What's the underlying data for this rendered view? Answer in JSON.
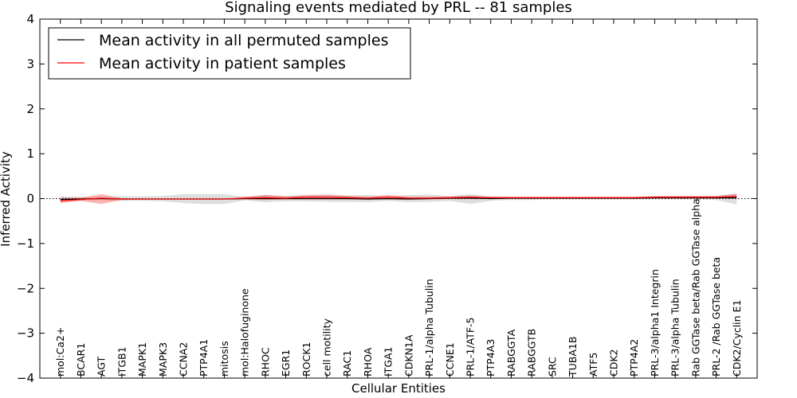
{
  "chart_data": {
    "type": "line",
    "title": "Signaling events mediated by PRL -- 81 samples",
    "xlabel": "Cellular Entities",
    "ylabel": "Inferred Activity",
    "ylim": [
      -4,
      4
    ],
    "yticks": [
      -4,
      -3,
      -2,
      -1,
      0,
      1,
      2,
      3,
      4
    ],
    "ytick_labels": [
      "−4",
      "−3",
      "−2",
      "−1",
      "0",
      "1",
      "2",
      "3",
      "4"
    ],
    "legend_position": "top-left",
    "categories": [
      "mol:Ca2+",
      "BCAR1",
      "AGT",
      "ITGB1",
      "MAPK1",
      "MAPK3",
      "CCNA2",
      "PTP4A1",
      "mitosis",
      "mol:Halofuginone",
      "RHOC",
      "EGR1",
      "ROCK1",
      "cell motility",
      "RAC1",
      "RHOA",
      "ITGA1",
      "CDKN1A",
      "PRL-1/alpha Tubulin",
      "CCNE1",
      "PRL-1/ATF-5",
      "PTP4A3",
      "RABGGTA",
      "RABGGTB",
      "SRC",
      "TUBA1B",
      "ATF5",
      "CDK2",
      "PTP4A2",
      "PRL-3/alpha1 Integrin",
      "PRL-3/alpha Tubulin",
      "Rab GGTase beta/Rab GGTase alpha",
      "PRL-2 /Rab GGTase beta",
      "CDK2/Cyclin E1"
    ],
    "series": [
      {
        "name": "Mean activity in all permuted samples",
        "color": "#000000",
        "values": [
          -0.02,
          -0.01,
          0.0,
          -0.01,
          -0.01,
          -0.01,
          -0.01,
          -0.01,
          -0.01,
          0.0,
          0.0,
          0.0,
          0.0,
          0.0,
          0.0,
          -0.01,
          0.0,
          -0.01,
          0.0,
          0.01,
          0.01,
          0.0,
          0.01,
          0.01,
          0.01,
          0.01,
          0.01,
          0.01,
          0.01,
          0.02,
          0.02,
          0.02,
          0.02,
          0.02
        ],
        "band_low": [
          -0.05,
          -0.04,
          -0.03,
          -0.05,
          -0.05,
          -0.06,
          -0.1,
          -0.12,
          -0.12,
          -0.04,
          -0.08,
          -0.06,
          -0.06,
          -0.07,
          -0.07,
          -0.08,
          -0.05,
          -0.08,
          -0.07,
          -0.05,
          -0.12,
          -0.05,
          -0.03,
          -0.03,
          -0.02,
          -0.02,
          -0.02,
          -0.02,
          -0.02,
          -0.02,
          -0.02,
          -0.02,
          -0.03,
          -0.13
        ],
        "band_high": [
          0.05,
          0.04,
          0.03,
          0.05,
          0.05,
          0.06,
          0.1,
          0.1,
          0.1,
          0.04,
          0.08,
          0.06,
          0.06,
          0.07,
          0.07,
          0.08,
          0.05,
          0.08,
          0.09,
          0.05,
          0.1,
          0.05,
          0.04,
          0.04,
          0.04,
          0.04,
          0.04,
          0.04,
          0.04,
          0.04,
          0.05,
          0.05,
          0.06,
          0.12
        ]
      },
      {
        "name": "Mean activity in patient samples",
        "color": "#ff0000",
        "values": [
          -0.05,
          -0.02,
          0.01,
          -0.01,
          -0.01,
          -0.01,
          -0.01,
          -0.01,
          -0.01,
          0.01,
          0.02,
          0.01,
          0.03,
          0.03,
          0.02,
          0.01,
          0.03,
          0.01,
          0.01,
          0.02,
          0.03,
          0.02,
          0.02,
          0.02,
          0.02,
          0.02,
          0.02,
          0.02,
          0.02,
          0.03,
          0.03,
          0.03,
          0.03,
          0.05
        ],
        "band_low": [
          -0.1,
          -0.05,
          -0.12,
          -0.03,
          -0.02,
          -0.02,
          -0.02,
          -0.02,
          -0.02,
          -0.02,
          -0.03,
          -0.02,
          -0.02,
          -0.02,
          -0.02,
          -0.02,
          -0.02,
          -0.02,
          -0.02,
          -0.01,
          -0.01,
          0.0,
          0.0,
          0.0,
          0.0,
          0.0,
          0.0,
          0.0,
          0.0,
          0.0,
          0.0,
          0.0,
          0.0,
          0.0
        ],
        "band_high": [
          0.02,
          0.02,
          0.1,
          0.01,
          0.0,
          0.0,
          0.0,
          0.0,
          0.0,
          0.04,
          0.08,
          0.05,
          0.08,
          0.09,
          0.06,
          0.04,
          0.08,
          0.04,
          0.04,
          0.05,
          0.06,
          0.04,
          0.04,
          0.04,
          0.04,
          0.04,
          0.04,
          0.04,
          0.04,
          0.06,
          0.06,
          0.06,
          0.06,
          0.1
        ]
      }
    ],
    "reference_line": 0
  }
}
